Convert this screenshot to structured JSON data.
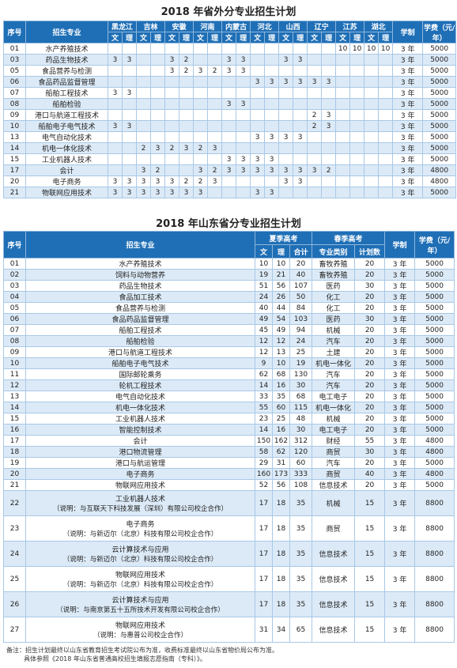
{
  "out_of_province": {
    "title": "2018 年省外分专业招生计划",
    "headers": {
      "no": "序号",
      "major": "招生专业",
      "duration": "学制",
      "fee": "学费（元/年）"
    },
    "provinces": [
      "黑龙江",
      "吉林",
      "安徽",
      "河南",
      "内蒙古",
      "河北",
      "山西",
      "辽宁",
      "江苏",
      "湖北"
    ],
    "subheaders": [
      "文",
      "理"
    ],
    "rows": [
      {
        "no": "01",
        "major": "水产养殖技术",
        "values": [
          null,
          null,
          null,
          null,
          null,
          null,
          null,
          null,
          null,
          null,
          null,
          null,
          null,
          null,
          null,
          null,
          10,
          10,
          10,
          10
        ],
        "duration": "3 年",
        "fee": 5000
      },
      {
        "no": "03",
        "major": "药品生物技术",
        "values": [
          3,
          3,
          null,
          null,
          3,
          2,
          null,
          null,
          3,
          3,
          null,
          null,
          3,
          3,
          null,
          null,
          null,
          null,
          null,
          null
        ],
        "duration": "3 年",
        "fee": 5000
      },
      {
        "no": "05",
        "major": "食品营养与检测",
        "values": [
          null,
          null,
          null,
          null,
          3,
          2,
          3,
          2,
          3,
          3,
          null,
          null,
          null,
          null,
          null,
          null,
          null,
          null,
          null,
          null
        ],
        "duration": "3 年",
        "fee": 5000
      },
      {
        "no": "06",
        "major": "食品药品监督管理",
        "values": [
          null,
          null,
          null,
          null,
          null,
          null,
          null,
          null,
          null,
          null,
          3,
          3,
          3,
          3,
          3,
          3,
          null,
          null,
          null,
          null
        ],
        "duration": "3 年",
        "fee": 5000
      },
      {
        "no": "07",
        "major": "船舶工程技术",
        "values": [
          3,
          3,
          null,
          null,
          null,
          null,
          null,
          null,
          null,
          null,
          null,
          null,
          null,
          null,
          null,
          null,
          null,
          null,
          null,
          null
        ],
        "duration": "3 年",
        "fee": 5000
      },
      {
        "no": "08",
        "major": "船舶检验",
        "values": [
          null,
          null,
          null,
          null,
          null,
          null,
          null,
          null,
          3,
          3,
          null,
          null,
          null,
          null,
          null,
          null,
          null,
          null,
          null,
          null
        ],
        "duration": "3 年",
        "fee": 5000
      },
      {
        "no": "09",
        "major": "港口与航道工程技术",
        "values": [
          null,
          null,
          null,
          null,
          null,
          null,
          null,
          null,
          null,
          null,
          null,
          null,
          null,
          null,
          2,
          3,
          null,
          null,
          null,
          null
        ],
        "duration": "3 年",
        "fee": 5000
      },
      {
        "no": "10",
        "major": "船舶电子电气技术",
        "values": [
          3,
          3,
          null,
          null,
          null,
          null,
          null,
          null,
          null,
          null,
          null,
          null,
          null,
          null,
          2,
          3,
          null,
          null,
          null,
          null
        ],
        "duration": "3 年",
        "fee": 5000
      },
      {
        "no": "13",
        "major": "电气自动化技术",
        "values": [
          null,
          null,
          null,
          null,
          null,
          null,
          null,
          null,
          null,
          null,
          3,
          3,
          3,
          3,
          null,
          null,
          null,
          null,
          null,
          null
        ],
        "duration": "3 年",
        "fee": 5000
      },
      {
        "no": "14",
        "major": "机电一体化技术",
        "values": [
          null,
          null,
          2,
          3,
          2,
          3,
          2,
          3,
          null,
          null,
          null,
          null,
          null,
          null,
          null,
          null,
          null,
          null,
          null,
          null
        ],
        "duration": "3 年",
        "fee": 5000
      },
      {
        "no": "15",
        "major": "工业机器人技术",
        "values": [
          null,
          null,
          null,
          null,
          null,
          null,
          null,
          null,
          3,
          3,
          3,
          3,
          null,
          null,
          null,
          null,
          null,
          null,
          null,
          null
        ],
        "duration": "3 年",
        "fee": 5000
      },
      {
        "no": "17",
        "major": "会计",
        "values": [
          null,
          null,
          3,
          2,
          null,
          null,
          3,
          2,
          3,
          3,
          3,
          3,
          3,
          3,
          3,
          2,
          null,
          null,
          null,
          null
        ],
        "duration": "3 年",
        "fee": 4800
      },
      {
        "no": "20",
        "major": "电子商务",
        "values": [
          3,
          3,
          3,
          3,
          3,
          2,
          2,
          3,
          null,
          null,
          null,
          null,
          3,
          3,
          null,
          null,
          null,
          null,
          null,
          null
        ],
        "duration": "3 年",
        "fee": 4800
      },
      {
        "no": "21",
        "major": "物联网应用技术",
        "values": [
          3,
          3,
          3,
          3,
          3,
          3,
          3,
          null,
          null,
          null,
          3,
          3,
          null,
          null,
          null,
          null,
          null,
          null,
          null,
          null
        ],
        "duration": "3 年",
        "fee": 5000
      }
    ]
  },
  "shandong": {
    "title": "2018 年山东省分专业招生计划",
    "headers": {
      "no": "序号",
      "major": "招生专业",
      "summer": "夏季高考",
      "spring": "春季高考",
      "wen": "文",
      "li": "理",
      "total": "合计",
      "category": "专业类别",
      "plan": "计划数",
      "duration": "学制",
      "fee": "学费（元/年）"
    },
    "rows": [
      {
        "no": "01",
        "major": "水产养殖技术",
        "wen": 10,
        "li": 10,
        "total": 20,
        "category": "畜牧养殖",
        "plan": 20,
        "duration": "3 年",
        "fee": 5000
      },
      {
        "no": "02",
        "major": "饲料与动物营养",
        "wen": 19,
        "li": 21,
        "total": 40,
        "category": "畜牧养殖",
        "plan": 20,
        "duration": "3 年",
        "fee": 5000
      },
      {
        "no": "03",
        "major": "药品生物技术",
        "wen": 51,
        "li": 56,
        "total": 107,
        "category": "医药",
        "plan": 30,
        "duration": "3 年",
        "fee": 5000
      },
      {
        "no": "04",
        "major": "食品加工技术",
        "wen": 24,
        "li": 26,
        "total": 50,
        "category": "化工",
        "plan": 20,
        "duration": "3 年",
        "fee": 5000
      },
      {
        "no": "05",
        "major": "食品营养与检测",
        "wen": 40,
        "li": 44,
        "total": 84,
        "category": "化工",
        "plan": 20,
        "duration": "3 年",
        "fee": 5000
      },
      {
        "no": "06",
        "major": "食品药品监督管理",
        "wen": 49,
        "li": 54,
        "total": 103,
        "category": "医药",
        "plan": 30,
        "duration": "3 年",
        "fee": 5000
      },
      {
        "no": "07",
        "major": "船舶工程技术",
        "wen": 45,
        "li": 49,
        "total": 94,
        "category": "机械",
        "plan": 20,
        "duration": "3 年",
        "fee": 5000
      },
      {
        "no": "08",
        "major": "船舶检验",
        "wen": 12,
        "li": 12,
        "total": 24,
        "category": "汽车",
        "plan": 20,
        "duration": "3 年",
        "fee": 5000
      },
      {
        "no": "09",
        "major": "港口与航道工程技术",
        "wen": 12,
        "li": 13,
        "total": 25,
        "category": "土建",
        "plan": 20,
        "duration": "3 年",
        "fee": 5000
      },
      {
        "no": "10",
        "major": "船舶电子电气技术",
        "wen": 9,
        "li": 10,
        "total": 19,
        "category": "机电一体化",
        "plan": 20,
        "duration": "3 年",
        "fee": 5000
      },
      {
        "no": "11",
        "major": "国际邮轮乘务",
        "wen": 62,
        "li": 68,
        "total": 130,
        "category": "汽车",
        "plan": 20,
        "duration": "3 年",
        "fee": 5000
      },
      {
        "no": "12",
        "major": "轮机工程技术",
        "wen": 14,
        "li": 16,
        "total": 30,
        "category": "汽车",
        "plan": 20,
        "duration": "3 年",
        "fee": 5000
      },
      {
        "no": "13",
        "major": "电气自动化技术",
        "wen": 33,
        "li": 35,
        "total": 68,
        "category": "电工电子",
        "plan": 20,
        "duration": "3 年",
        "fee": 5000
      },
      {
        "no": "14",
        "major": "机电一体化技术",
        "wen": 55,
        "li": 60,
        "total": 115,
        "category": "机电一体化",
        "plan": 20,
        "duration": "3 年",
        "fee": 5000
      },
      {
        "no": "15",
        "major": "工业机器人技术",
        "wen": 23,
        "li": 25,
        "total": 48,
        "category": "机械",
        "plan": 20,
        "duration": "3 年",
        "fee": 5000
      },
      {
        "no": "16",
        "major": "智能控制技术",
        "wen": 14,
        "li": 16,
        "total": 30,
        "category": "电工电子",
        "plan": 20,
        "duration": "3 年",
        "fee": 5000
      },
      {
        "no": "17",
        "major": "会计",
        "wen": 150,
        "li": 162,
        "total": 312,
        "category": "财经",
        "plan": 55,
        "duration": "3 年",
        "fee": 4800
      },
      {
        "no": "18",
        "major": "港口物流管理",
        "wen": 58,
        "li": 62,
        "total": 120,
        "category": "商贸",
        "plan": 30,
        "duration": "3 年",
        "fee": 4800
      },
      {
        "no": "19",
        "major": "港口与航运管理",
        "wen": 29,
        "li": 31,
        "total": 60,
        "category": "汽车",
        "plan": 20,
        "duration": "3 年",
        "fee": 5000
      },
      {
        "no": "20",
        "major": "电子商务",
        "wen": 160,
        "li": 173,
        "total": 333,
        "category": "商贸",
        "plan": 40,
        "duration": "3 年",
        "fee": 4800
      },
      {
        "no": "21",
        "major": "物联网应用技术",
        "wen": 52,
        "li": 56,
        "total": 108,
        "category": "信息技术",
        "plan": 20,
        "duration": "3 年",
        "fee": 5000
      },
      {
        "no": "22",
        "major": "工业机器人技术",
        "note": "（说明：与互联天下科技发展（深圳）有限公司校企合作）",
        "wen": 17,
        "li": 18,
        "total": 35,
        "category": "机械",
        "plan": 15,
        "duration": "3 年",
        "fee": 8800
      },
      {
        "no": "23",
        "major": "电子商务",
        "note": "（说明：与新迈尔（北京）科技有限公司校企合作）",
        "wen": 17,
        "li": 18,
        "total": 35,
        "category": "商贸",
        "plan": 15,
        "duration": "3 年",
        "fee": 8800
      },
      {
        "no": "24",
        "major": "云计算技术与应用",
        "note": "（说明：与新迈尔（北京）科技有限公司校企合作）",
        "wen": 17,
        "li": 18,
        "total": 35,
        "category": "信息技术",
        "plan": 15,
        "duration": "3 年",
        "fee": 8800
      },
      {
        "no": "25",
        "major": "物联网应用技术",
        "note": "（说明：与新迈尔（北京）科技有限公司校企合作）",
        "wen": 17,
        "li": 18,
        "total": 35,
        "category": "信息技术",
        "plan": 15,
        "duration": "3 年",
        "fee": 8800
      },
      {
        "no": "26",
        "major": "云计算技术与应用",
        "note": "（说明：与南京第五十五所技术开发有限公司校企合作）",
        "wen": 17,
        "li": 18,
        "total": 35,
        "category": "信息技术",
        "plan": 15,
        "duration": "3 年",
        "fee": 8800
      },
      {
        "no": "27",
        "major": "物联网应用技术",
        "note": "（说明：与惠普公司校企合作）",
        "wen": 31,
        "li": 34,
        "total": 65,
        "category": "信息技术",
        "plan": 15,
        "duration": "3 年",
        "fee": 8800
      }
    ]
  },
  "footnote": [
    "备注：招生计划最终以山东省教育招生考试院公布为准，收费标准最终以山东省物价局公布为准。",
    "具体参照《2018 年山东省普通高校招生填报志愿指南（专科）》。"
  ]
}
